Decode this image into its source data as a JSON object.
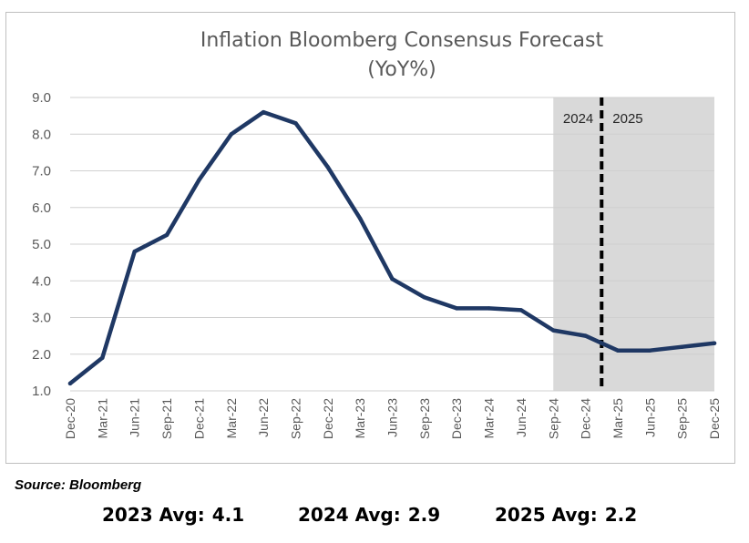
{
  "chart_data": {
    "type": "line",
    "title_lines": [
      "Inflation Bloomberg Consensus Forecast",
      "(YoY%)"
    ],
    "categories": [
      "Dec-20",
      "Mar-21",
      "Jun-21",
      "Sep-21",
      "Dec-21",
      "Mar-22",
      "Jun-22",
      "Sep-22",
      "Dec-22",
      "Mar-23",
      "Jun-23",
      "Sep-23",
      "Dec-23",
      "Mar-24",
      "Jun-24",
      "Sep-24",
      "Dec-24",
      "Mar-25",
      "Jun-25",
      "Sep-25",
      "Dec-25"
    ],
    "series": [
      {
        "values": [
          1.2,
          1.9,
          4.8,
          5.25,
          6.75,
          8.0,
          8.6,
          8.3,
          7.1,
          5.7,
          4.05,
          3.55,
          3.25,
          3.25,
          3.2,
          2.65,
          2.5,
          2.1,
          2.1,
          2.2,
          2.3
        ],
        "color": "#1f3864"
      }
    ],
    "y_ticks": [
      "1.0",
      "2.0",
      "3.0",
      "4.0",
      "5.0",
      "6.0",
      "7.0",
      "8.0",
      "9.0"
    ],
    "ylim": [
      1.0,
      9.0
    ],
    "grid": true,
    "forecast_shading": {
      "from_category": "Sep-24",
      "to_category": "Dec-25",
      "color": "#d9d9d9"
    },
    "year_divider": {
      "between": [
        "Dec-24",
        "Mar-25"
      ],
      "left_label": "2024",
      "right_label": "2025"
    }
  },
  "source": "Source: Bloomberg",
  "averages": [
    {
      "label": "2023 Avg:",
      "value": "4.1"
    },
    {
      "label": "2024 Avg:",
      "value": "2.9"
    },
    {
      "label": "2025 Avg:",
      "value": "2.2"
    }
  ]
}
